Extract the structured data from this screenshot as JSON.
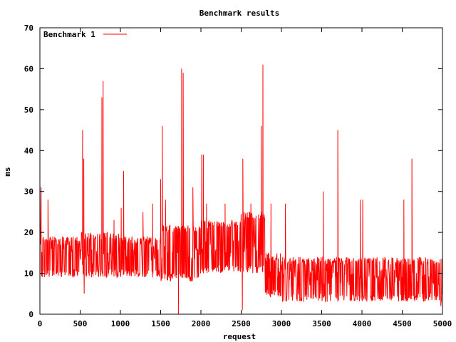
{
  "chart_data": {
    "type": "line",
    "title": "Benchmark results",
    "xlabel": "request",
    "ylabel": "ms",
    "xlim": [
      0,
      5000
    ],
    "ylim": [
      0,
      70
    ],
    "xticks": [
      0,
      500,
      1000,
      1500,
      2000,
      2500,
      3000,
      3500,
      4000,
      4500,
      5000
    ],
    "yticks": [
      0,
      10,
      20,
      30,
      40,
      50,
      60,
      70
    ],
    "grid": false,
    "legend_position": "top-left",
    "series": [
      {
        "name": "Benchmark 1",
        "color": "#ff0000",
        "segments": [
          {
            "x_start": 0,
            "x_end": 500,
            "low": 9,
            "high": 19,
            "base": 17
          },
          {
            "x_start": 500,
            "x_end": 1000,
            "low": 9,
            "high": 20,
            "base": 14
          },
          {
            "x_start": 1000,
            "x_end": 1500,
            "low": 9,
            "high": 19,
            "base": 15
          },
          {
            "x_start": 1500,
            "x_end": 2000,
            "low": 8,
            "high": 22,
            "base": 15
          },
          {
            "x_start": 2000,
            "x_end": 2500,
            "low": 10,
            "high": 23,
            "base": 16
          },
          {
            "x_start": 2500,
            "x_end": 2800,
            "low": 10,
            "high": 25,
            "base": 16
          },
          {
            "x_start": 2800,
            "x_end": 3000,
            "low": 4,
            "high": 15,
            "base": 10
          },
          {
            "x_start": 3000,
            "x_end": 5000,
            "low": 3,
            "high": 14,
            "base": 9
          }
        ],
        "spikes": [
          {
            "x": 0,
            "y": 31
          },
          {
            "x": 15,
            "y": 31
          },
          {
            "x": 100,
            "y": 28
          },
          {
            "x": 280,
            "y": 19
          },
          {
            "x": 530,
            "y": 45
          },
          {
            "x": 545,
            "y": 38
          },
          {
            "x": 550,
            "y": 5
          },
          {
            "x": 770,
            "y": 53
          },
          {
            "x": 785,
            "y": 57
          },
          {
            "x": 920,
            "y": 23
          },
          {
            "x": 1010,
            "y": 26
          },
          {
            "x": 1040,
            "y": 35
          },
          {
            "x": 1280,
            "y": 25
          },
          {
            "x": 1400,
            "y": 27
          },
          {
            "x": 1500,
            "y": 33
          },
          {
            "x": 1520,
            "y": 46
          },
          {
            "x": 1560,
            "y": 28
          },
          {
            "x": 1720,
            "y": 0
          },
          {
            "x": 1760,
            "y": 60
          },
          {
            "x": 1780,
            "y": 59
          },
          {
            "x": 1900,
            "y": 31
          },
          {
            "x": 2010,
            "y": 39
          },
          {
            "x": 2030,
            "y": 39
          },
          {
            "x": 2070,
            "y": 27
          },
          {
            "x": 2300,
            "y": 27
          },
          {
            "x": 2515,
            "y": 1
          },
          {
            "x": 2520,
            "y": 38
          },
          {
            "x": 2620,
            "y": 27
          },
          {
            "x": 2750,
            "y": 46
          },
          {
            "x": 2770,
            "y": 61
          },
          {
            "x": 2870,
            "y": 27
          },
          {
            "x": 3050,
            "y": 27
          },
          {
            "x": 3520,
            "y": 30
          },
          {
            "x": 3700,
            "y": 45
          },
          {
            "x": 3980,
            "y": 28
          },
          {
            "x": 4010,
            "y": 28
          },
          {
            "x": 4520,
            "y": 28
          },
          {
            "x": 4620,
            "y": 38
          },
          {
            "x": 4980,
            "y": 2
          }
        ]
      }
    ]
  }
}
